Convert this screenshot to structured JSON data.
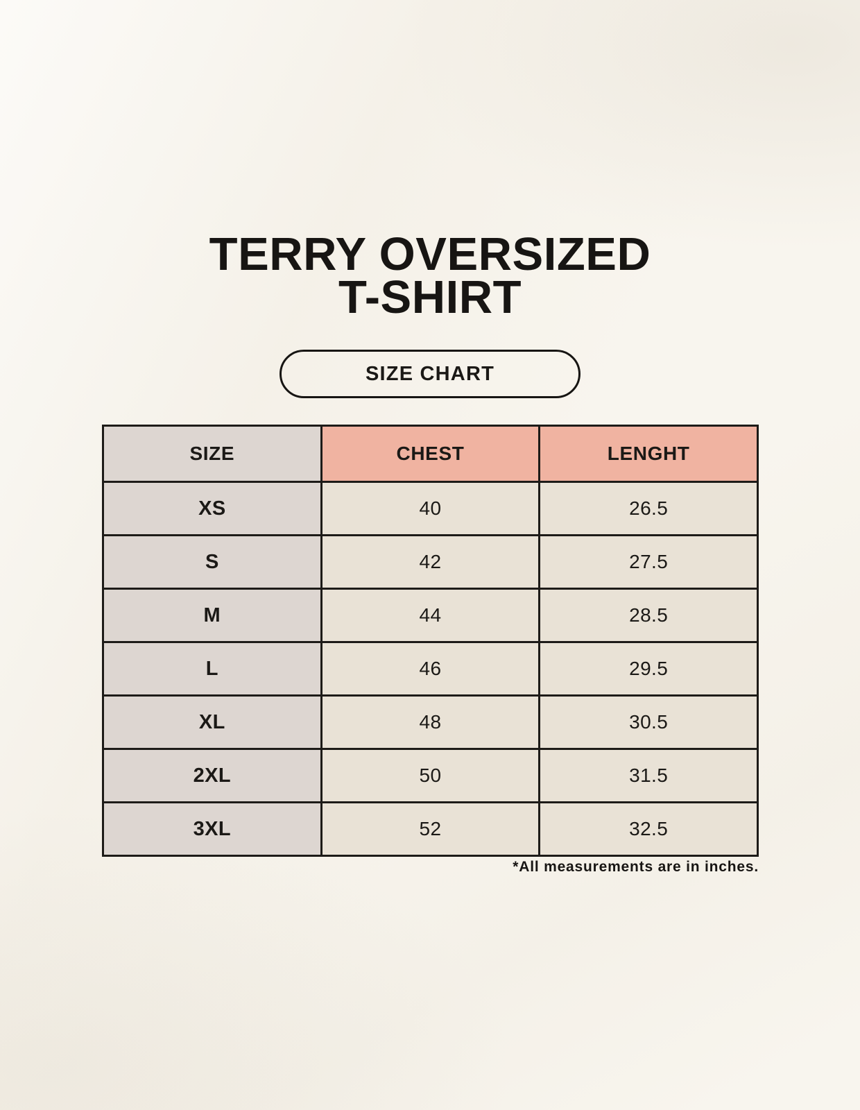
{
  "page": {
    "title_line1": "TERRY OVERSIZED",
    "title_line2": "T-SHIRT",
    "badge_label": "SIZE CHART",
    "footnote": "*All measurements are in inches."
  },
  "table": {
    "headers": [
      "SIZE",
      "CHEST",
      "LENGHT"
    ],
    "rows": [
      {
        "size": "XS",
        "chest": "40",
        "length": "26.5"
      },
      {
        "size": "S",
        "chest": "42",
        "length": "27.5"
      },
      {
        "size": "M",
        "chest": "44",
        "length": "28.5"
      },
      {
        "size": "L",
        "chest": "46",
        "length": "29.5"
      },
      {
        "size": "XL",
        "chest": "48",
        "length": "30.5"
      },
      {
        "size": "2XL",
        "chest": "50",
        "length": "31.5"
      },
      {
        "size": "3XL",
        "chest": "52",
        "length": "32.5"
      }
    ]
  },
  "chart_data": {
    "type": "table",
    "title": "TERRY OVERSIZED T-SHIRT — SIZE CHART",
    "columns": [
      "SIZE",
      "CHEST",
      "LENGHT"
    ],
    "rows": [
      [
        "XS",
        40,
        26.5
      ],
      [
        "S",
        42,
        27.5
      ],
      [
        "M",
        44,
        28.5
      ],
      [
        "L",
        46,
        29.5
      ],
      [
        "XL",
        48,
        30.5
      ],
      [
        "2XL",
        50,
        31.5
      ],
      [
        "3XL",
        52,
        32.5
      ]
    ],
    "note": "*All measurements are in inches.",
    "units": "inches"
  },
  "colors": {
    "background": "#f8f5ee",
    "header_accent": "#f0b3a1",
    "size_column": "#ddd6d1",
    "data_cell": "#e9e2d6",
    "border": "#1d1b18",
    "text": "#171513"
  }
}
